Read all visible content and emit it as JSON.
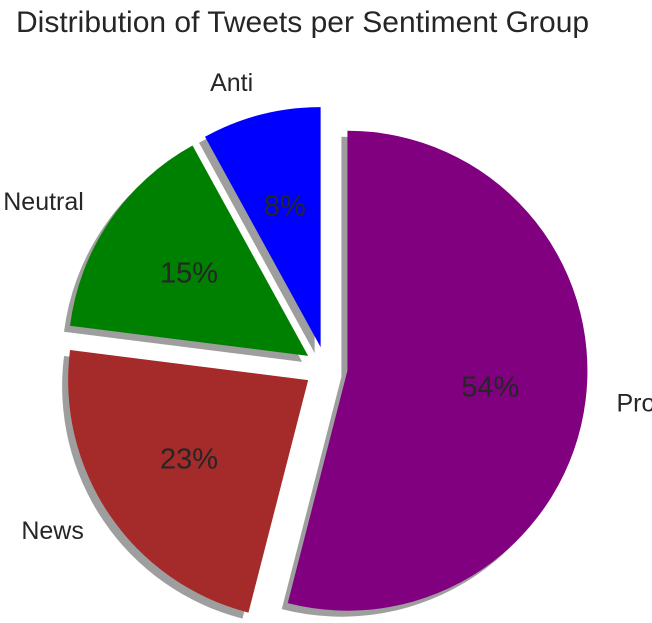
{
  "chart_data": {
    "type": "pie",
    "title": "Distribution of Tweets per Sentiment Group",
    "categories": [
      "Anti",
      "Neutral",
      "News",
      "Pro"
    ],
    "values": [
      8,
      15,
      23,
      54
    ],
    "value_labels": [
      "8%",
      "15%",
      "23%",
      "54%"
    ],
    "colors": [
      "#0000ff",
      "#008000",
      "#a52a2a",
      "#800080"
    ],
    "start_angle": "top, counterclockwise",
    "exploded": true,
    "shadow": true,
    "legend": "none"
  }
}
